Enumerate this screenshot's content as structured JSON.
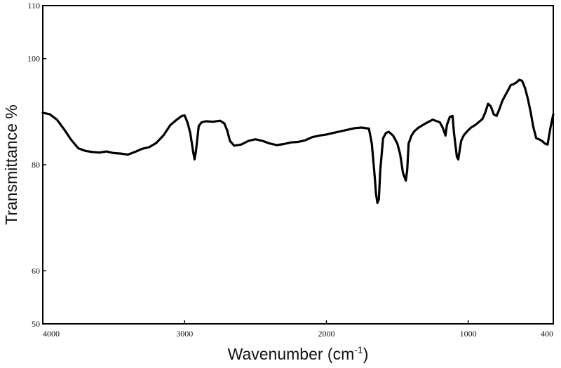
{
  "chart_data": {
    "type": "line",
    "title": "",
    "xlabel": "Wavenumber (cm",
    "xlabel_sup": "-1",
    "xlabel_end": ")",
    "ylabel": "Transmittance %",
    "xlim": [
      4000,
      400
    ],
    "ylim": [
      50,
      110
    ],
    "x_reversed": true,
    "grid": false,
    "legend": "none",
    "x_ticks": [
      {
        "value": 4000,
        "label": "4000"
      },
      {
        "value": 3000,
        "label": "3000"
      },
      {
        "value": 2000,
        "label": "2000"
      },
      {
        "value": 1000,
        "label": "1000"
      },
      {
        "value": 400,
        "label": "400"
      }
    ],
    "y_ticks": [
      {
        "value": 110,
        "label": "110"
      },
      {
        "value": 100,
        "label": "100"
      },
      {
        "value": 80,
        "label": "80"
      },
      {
        "value": 60,
        "label": "60"
      },
      {
        "value": 50,
        "label": "50"
      }
    ],
    "series": [
      {
        "color": "#000000",
        "x": [
          4000,
          3950,
          3900,
          3850,
          3800,
          3750,
          3700,
          3650,
          3600,
          3550,
          3500,
          3450,
          3400,
          3350,
          3300,
          3250,
          3200,
          3150,
          3100,
          3050,
          3020,
          3000,
          2980,
          2960,
          2940,
          2930,
          2920,
          2900,
          2880,
          2850,
          2800,
          2750,
          2720,
          2700,
          2680,
          2650,
          2600,
          2550,
          2500,
          2450,
          2400,
          2350,
          2300,
          2250,
          2200,
          2150,
          2100,
          2050,
          2000,
          1950,
          1900,
          1850,
          1800,
          1750,
          1700,
          1680,
          1660,
          1650,
          1640,
          1630,
          1620,
          1600,
          1580,
          1560,
          1530,
          1500,
          1480,
          1460,
          1440,
          1430,
          1420,
          1400,
          1380,
          1350,
          1300,
          1250,
          1200,
          1180,
          1160,
          1150,
          1130,
          1110,
          1100,
          1080,
          1070,
          1050,
          1030,
          1000,
          980,
          950,
          900,
          880,
          860,
          840,
          820,
          800,
          780,
          760,
          740,
          720,
          700,
          680,
          660,
          640,
          620,
          600,
          580,
          560,
          540,
          520,
          500,
          480,
          460,
          440,
          420,
          400
        ],
        "y": [
          89.8,
          89.5,
          88.5,
          86.7,
          84.7,
          83.1,
          82.6,
          82.4,
          82.3,
          82.5,
          82.2,
          82.1,
          81.9,
          82.4,
          83.0,
          83.3,
          84.1,
          85.5,
          87.5,
          88.6,
          89.2,
          89.3,
          88.0,
          86.0,
          82.5,
          81.0,
          82.5,
          87.3,
          88.0,
          88.2,
          88.1,
          88.3,
          87.8,
          86.5,
          84.5,
          83.6,
          83.8,
          84.5,
          84.8,
          84.5,
          84.0,
          83.7,
          83.9,
          84.2,
          84.3,
          84.6,
          85.2,
          85.5,
          85.7,
          86.0,
          86.3,
          86.6,
          86.9,
          87.0,
          86.8,
          84.0,
          78.0,
          74.5,
          72.8,
          73.5,
          79.0,
          85.0,
          86.0,
          86.2,
          85.5,
          84.0,
          82.0,
          78.5,
          77.0,
          79.0,
          84.0,
          85.5,
          86.3,
          87.0,
          87.8,
          88.5,
          88.0,
          87.0,
          85.5,
          87.5,
          89.0,
          89.2,
          86.0,
          81.5,
          81.0,
          84.5,
          85.6,
          86.5,
          87.0,
          87.5,
          88.6,
          89.8,
          91.5,
          91.0,
          89.5,
          89.2,
          90.5,
          92.0,
          93.0,
          94.0,
          95.0,
          95.2,
          95.5,
          96.0,
          95.8,
          94.5,
          92.5,
          90.0,
          87.0,
          85.0,
          84.8,
          84.5,
          84.0,
          83.8,
          87.0,
          89.5
        ]
      }
    ]
  }
}
